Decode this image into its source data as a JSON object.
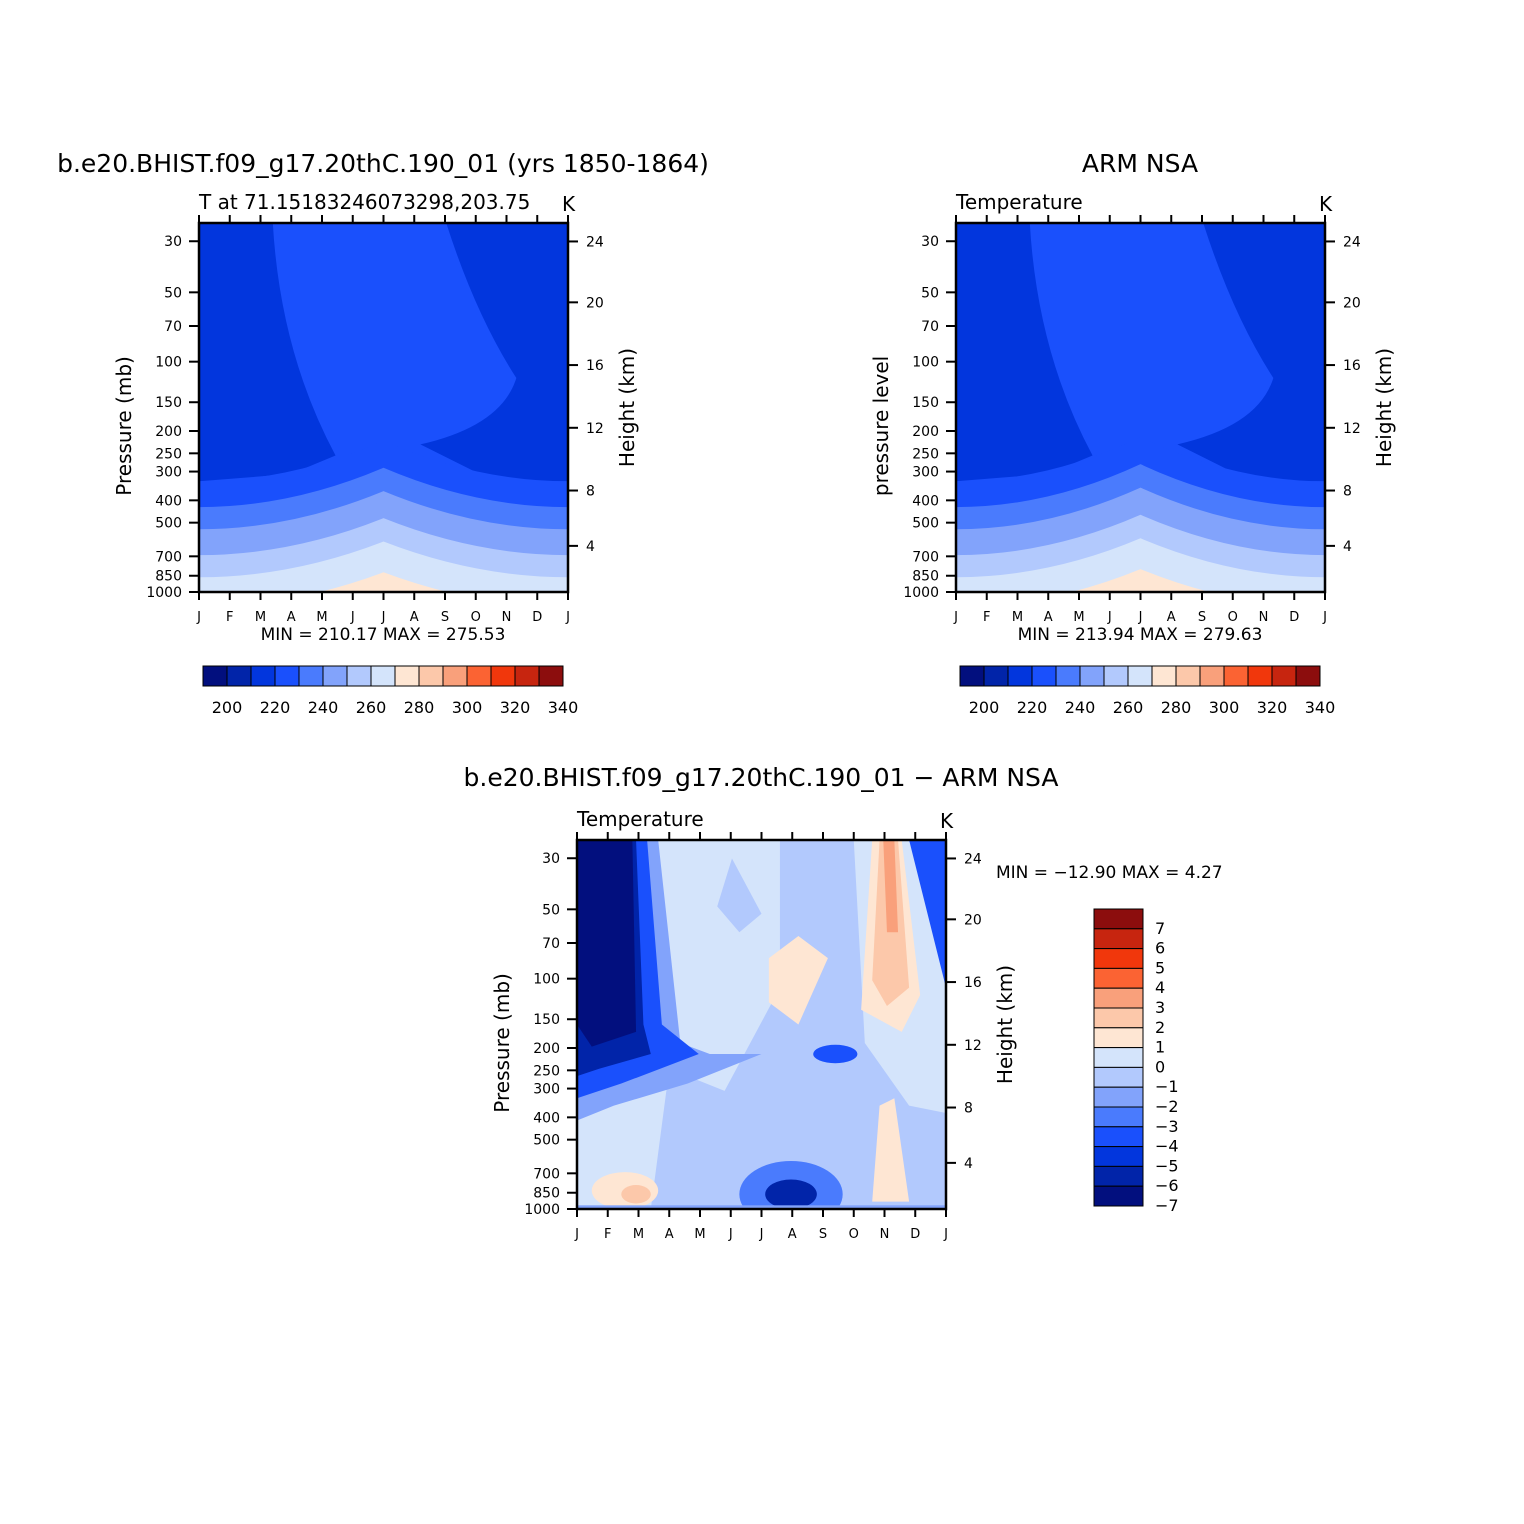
{
  "chart_data": [
    {
      "type": "heatmap",
      "title": "b.e20.BHIST.f09_g17.20thC.190_01 (yrs 1850-1864)",
      "subtitle_left": "T at 71.15183246073298,203.75",
      "subtitle_right": "K",
      "ylabel": "Pressure (mb)",
      "ylabel_right": "Height (km)",
      "x_ticks": [
        "J",
        "F",
        "M",
        "A",
        "M",
        "J",
        "J",
        "A",
        "S",
        "O",
        "N",
        "D",
        "J"
      ],
      "p_ticks": [
        "30",
        "50",
        "70",
        "100",
        "150",
        "200",
        "250",
        "300",
        "400",
        "500",
        "700",
        "850",
        "1000"
      ],
      "h_ticks": [
        "24",
        "20",
        "16",
        "12",
        "8",
        "4"
      ],
      "stats": "MIN = 210.17 MAX = 275.53",
      "colorbar_labels": [
        "200",
        "220",
        "240",
        "260",
        "280",
        "300",
        "320",
        "340"
      ],
      "levels_K": [
        200,
        210,
        220,
        230,
        240,
        250,
        260,
        270,
        280,
        290,
        300,
        310,
        320,
        330,
        340
      ],
      "min": 210.17,
      "max": 275.53,
      "summer_surface_max": 275.53,
      "winter_upper_min": 210.17
    },
    {
      "type": "heatmap",
      "title": "ARM NSA",
      "subtitle_left": "Temperature",
      "subtitle_right": "K",
      "ylabel": "pressure level",
      "ylabel_right": "Height (km)",
      "x_ticks": [
        "J",
        "F",
        "M",
        "A",
        "M",
        "J",
        "J",
        "A",
        "S",
        "O",
        "N",
        "D",
        "J"
      ],
      "p_ticks": [
        "30",
        "50",
        "70",
        "100",
        "150",
        "200",
        "250",
        "300",
        "400",
        "500",
        "700",
        "850",
        "1000"
      ],
      "h_ticks": [
        "24",
        "20",
        "16",
        "12",
        "8",
        "4"
      ],
      "stats": "MIN = 213.94 MAX = 279.63",
      "colorbar_labels": [
        "200",
        "220",
        "240",
        "260",
        "280",
        "300",
        "320",
        "340"
      ],
      "levels_K": [
        200,
        210,
        220,
        230,
        240,
        250,
        260,
        270,
        280,
        290,
        300,
        310,
        320,
        330,
        340
      ],
      "min": 213.94,
      "max": 279.63
    },
    {
      "type": "heatmap",
      "title": "b.e20.BHIST.f09_g17.20thC.190_01 − ARM NSA",
      "subtitle_left": "Temperature",
      "subtitle_right": "K",
      "ylabel": "Pressure (mb)",
      "ylabel_right": "Height (km)",
      "x_ticks": [
        "J",
        "F",
        "M",
        "A",
        "M",
        "J",
        "J",
        "A",
        "S",
        "O",
        "N",
        "D",
        "J"
      ],
      "p_ticks": [
        "30",
        "50",
        "70",
        "100",
        "150",
        "200",
        "250",
        "300",
        "400",
        "500",
        "700",
        "850",
        "1000"
      ],
      "h_ticks": [
        "24",
        "20",
        "16",
        "12",
        "8",
        "4"
      ],
      "stats": "MIN = −12.90 MAX =    4.27",
      "colorbar_labels": [
        "7",
        "6",
        "5",
        "4",
        "3",
        "2",
        "1",
        "0",
        "−1",
        "−2",
        "−3",
        "−4",
        "−5",
        "−6",
        "−7"
      ],
      "levels_K": [
        -7,
        -6,
        -5,
        -4,
        -3,
        -2,
        -1,
        0,
        1,
        2,
        3,
        4,
        5,
        6,
        7
      ],
      "min": -12.9,
      "max": 4.27
    }
  ],
  "colors": {
    "temp_scale": [
      "#020f7e",
      "#0124a9",
      "#0236dd",
      "#1a50fc",
      "#4a7bfd",
      "#82a3fb",
      "#b2c9fd",
      "#d4e4fb",
      "#fee6d3",
      "#fcc8aa",
      "#f9a07b",
      "#fb6333",
      "#f1370c",
      "#c7250f",
      "#8c0d0d"
    ],
    "diff_scale": [
      "#020f7e",
      "#0124a9",
      "#0236dd",
      "#1a50fc",
      "#4a7bfd",
      "#82a3fb",
      "#b2c9fd",
      "#d4e4fb",
      "#fee6d3",
      "#fcc8aa",
      "#f9a07b",
      "#fb6333",
      "#f1370c",
      "#c7250f",
      "#8c0d0d"
    ]
  }
}
